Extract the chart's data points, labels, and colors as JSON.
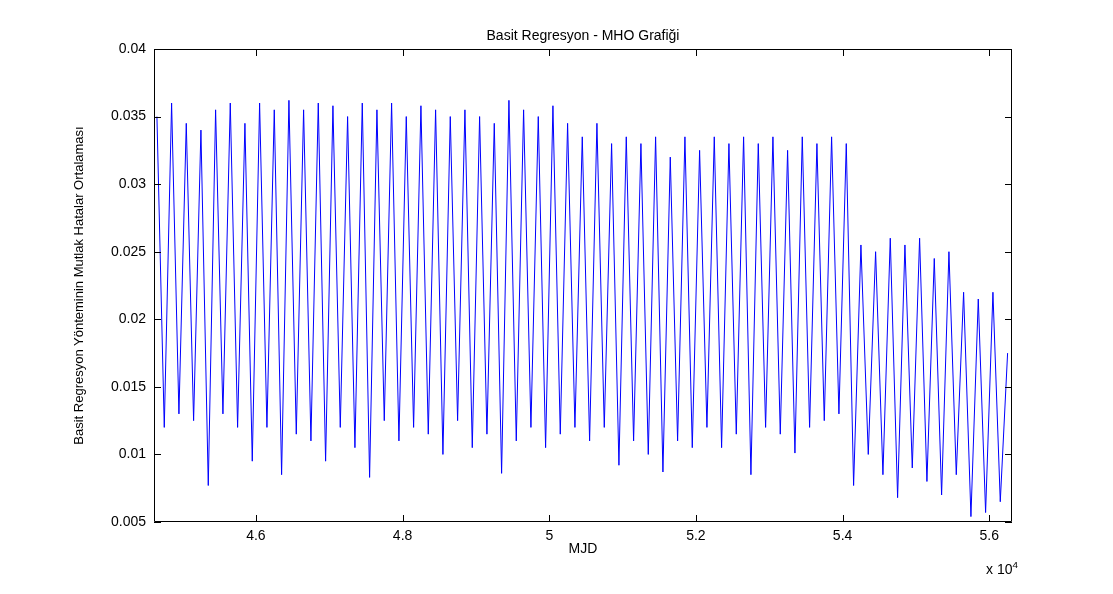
{
  "chart_data": {
    "type": "line",
    "title": "Basit Regresyon - MHO Grafiği",
    "xlabel": "MJD",
    "ylabel": "Basit Regresyon Yönteminin Mutlak Hatalar Ortalaması",
    "annotations": [
      "x 10$^{4}$"
    ],
    "x": [
      4.465,
      4.475,
      4.485,
      4.495,
      4.505,
      4.515,
      4.525,
      4.535,
      4.545,
      4.555,
      4.565,
      4.575,
      4.585,
      4.595,
      4.605,
      4.615,
      4.625,
      4.635,
      4.645,
      4.655,
      4.665,
      4.675,
      4.685,
      4.695,
      4.705,
      4.715,
      4.725,
      4.735,
      4.745,
      4.755,
      4.765,
      4.775,
      4.785,
      4.795,
      4.805,
      4.815,
      4.825,
      4.835,
      4.845,
      4.855,
      4.865,
      4.875,
      4.885,
      4.895,
      4.905,
      4.915,
      4.925,
      4.935,
      4.945,
      4.955,
      4.965,
      4.975,
      4.985,
      4.995,
      5.005,
      5.015,
      5.025,
      5.035,
      5.045,
      5.055,
      5.065,
      5.075,
      5.085,
      5.095,
      5.105,
      5.115,
      5.125,
      5.135,
      5.145,
      5.155,
      5.165,
      5.175,
      5.185,
      5.195,
      5.205,
      5.215,
      5.225,
      5.235,
      5.245,
      5.255,
      5.265,
      5.275,
      5.285,
      5.295,
      5.305,
      5.315,
      5.325,
      5.335,
      5.345,
      5.355,
      5.365,
      5.375,
      5.385,
      5.395,
      5.405,
      5.415,
      5.425,
      5.435,
      5.445,
      5.455,
      5.465,
      5.475,
      5.485,
      5.495,
      5.505,
      5.515,
      5.525,
      5.535,
      5.545,
      5.555,
      5.565,
      5.575,
      5.585,
      5.595,
      5.605,
      5.615,
      5.625
    ],
    "series": [
      {
        "color": "#0000ff",
        "values": [
          0.035,
          0.012,
          0.036,
          0.013,
          0.0345,
          0.0125,
          0.034,
          0.0077,
          0.0355,
          0.013,
          0.036,
          0.012,
          0.0345,
          0.0095,
          0.036,
          0.012,
          0.0355,
          0.0085,
          0.0362,
          0.0115,
          0.0355,
          0.011,
          0.036,
          0.0095,
          0.0358,
          0.012,
          0.035,
          0.0105,
          0.036,
          0.0083,
          0.0355,
          0.0125,
          0.036,
          0.011,
          0.035,
          0.012,
          0.0358,
          0.0115,
          0.0355,
          0.01,
          0.035,
          0.0125,
          0.0355,
          0.0105,
          0.035,
          0.0115,
          0.0345,
          0.0086,
          0.0362,
          0.011,
          0.0355,
          0.012,
          0.035,
          0.0105,
          0.0358,
          0.0115,
          0.0345,
          0.012,
          0.0335,
          0.011,
          0.0345,
          0.012,
          0.033,
          0.0092,
          0.0335,
          0.011,
          0.033,
          0.01,
          0.0335,
          0.0087,
          0.032,
          0.011,
          0.0335,
          0.0105,
          0.0325,
          0.012,
          0.0335,
          0.0105,
          0.033,
          0.0115,
          0.0335,
          0.0085,
          0.033,
          0.012,
          0.0335,
          0.0115,
          0.0325,
          0.0101,
          0.0335,
          0.012,
          0.033,
          0.0125,
          0.0335,
          0.013,
          0.033,
          0.0077,
          0.0255,
          0.01,
          0.025,
          0.0085,
          0.026,
          0.0068,
          0.0255,
          0.009,
          0.026,
          0.008,
          0.0245,
          0.007,
          0.025,
          0.0085,
          0.022,
          0.0054,
          0.0215,
          0.0057,
          0.022,
          0.0065,
          0.0175
        ]
      }
    ],
    "xlim": [
      4.461,
      5.631
    ],
    "xticks": [
      4.6,
      4.8,
      5,
      5.2,
      5.4,
      5.6
    ],
    "ylim": [
      0.005,
      0.04
    ],
    "yticks": [
      0.005,
      0.01,
      0.015,
      0.02,
      0.025,
      0.03,
      0.035,
      0.04
    ],
    "grid": false,
    "legend": false,
    "marker": "none",
    "line_style": "solid"
  }
}
